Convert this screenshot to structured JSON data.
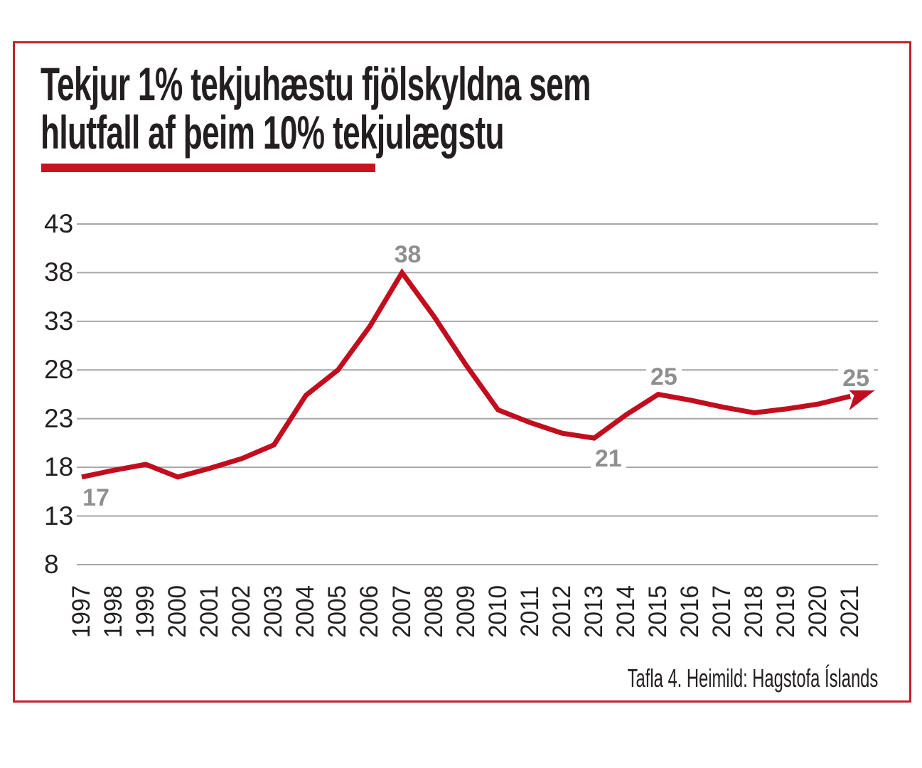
{
  "title": {
    "line1": "Tekjur 1% tekjuhæstu fjölskyldna sem",
    "line2": "hlutfall af þeim 10% tekjulægstu"
  },
  "caption": "Tafla 4. Heimild: Hagstofa Íslands",
  "colors": {
    "line": "#c10d1e",
    "title_underline": "#cc1220",
    "frame_border": "#c2202a",
    "gridline": "#a6a6a6",
    "annotation_label": "#8f8f8f",
    "text": "#231f20"
  },
  "chart_data": {
    "type": "line",
    "title": "Tekjur 1% tekjuhæstu fjölskyldna sem hlutfall af þeim 10% tekjulægstu",
    "xlabel": "",
    "ylabel": "",
    "x": [
      1997,
      1998,
      1999,
      2000,
      2001,
      2002,
      2003,
      2004,
      2005,
      2006,
      2007,
      2008,
      2009,
      2010,
      2011,
      2012,
      2013,
      2014,
      2015,
      2016,
      2017,
      2018,
      2019,
      2020,
      2021
    ],
    "series": [
      {
        "name": "Tekjur 1% tekjuhæstu sem hlutfall af 10% tekjulægstu",
        "values": [
          17,
          17.7,
          18.3,
          17,
          17.9,
          18.9,
          20.3,
          25.4,
          28,
          32.5,
          38,
          33.5,
          28.5,
          23.9,
          22.6,
          21.5,
          21,
          23.4,
          25.5,
          24.9,
          24.2,
          23.6,
          24,
          24.5,
          25.3
        ]
      }
    ],
    "y_ticks": [
      43,
      38,
      33,
      28,
      23,
      18,
      13,
      8
    ],
    "ylim": [
      8,
      43
    ],
    "grid": true,
    "legend_position": "none",
    "arrow_end": true,
    "annotations": [
      {
        "x": 1997,
        "label": "17",
        "placement": "below"
      },
      {
        "x": 2007,
        "label": "38",
        "placement": "above"
      },
      {
        "x": 2013,
        "label": "21",
        "placement": "below"
      },
      {
        "x": 2015,
        "label": "25",
        "placement": "above"
      },
      {
        "x": 2021,
        "label": "25",
        "placement": "above"
      }
    ]
  }
}
